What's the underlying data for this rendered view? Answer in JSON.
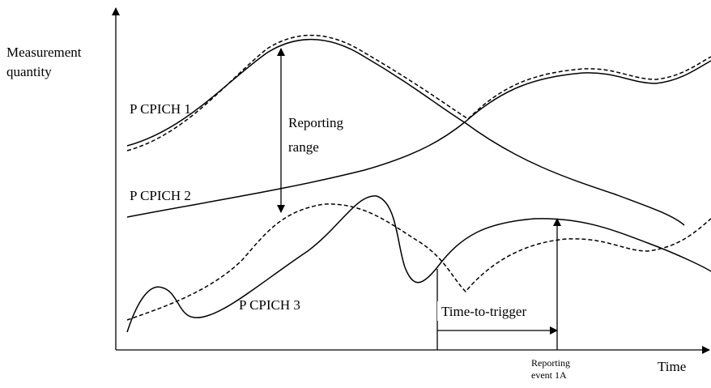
{
  "axes": {
    "y_label": [
      "Measurement",
      "quantity"
    ],
    "x_label": "Time"
  },
  "curves": {
    "cpich1": "P CPICH 1",
    "cpich2": "P CPICH 2",
    "cpich3": "P CPICH 3"
  },
  "annotations": {
    "reporting_range": [
      "Reporting",
      "range"
    ],
    "time_to_trigger": "Time-to-trigger",
    "reporting_event": [
      "Reporting",
      "event 1A"
    ]
  }
}
